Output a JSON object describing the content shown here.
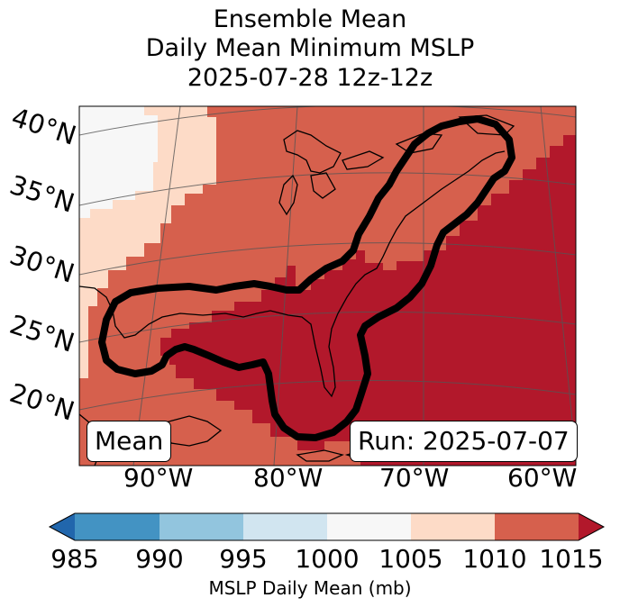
{
  "title": {
    "line1": "Ensemble Mean",
    "line2": "Daily Mean Minimum MSLP",
    "line3": "2025-07-28 12z-12z"
  },
  "map": {
    "latitude_labels": [
      "40°N",
      "35°N",
      "30°N",
      "25°N",
      "20°N"
    ],
    "longitude_labels": [
      "90°W",
      "80°W",
      "70°W",
      "60°W"
    ],
    "mean_box": "Mean",
    "run_box": "Run: 2025-07-07",
    "contour_color": "#000000",
    "fill_colors": {
      "1000_1005": "#f7f7f7",
      "1005_1010": "#fddbc7",
      "1010_1015": "#d6604d",
      "above_1015": "#b2182b"
    }
  },
  "colorbar": {
    "ticks": [
      "985",
      "990",
      "995",
      "1000",
      "1005",
      "1010",
      "1015"
    ],
    "label": "MSLP Daily Mean (mb)",
    "colors": [
      "#2166ac",
      "#4393c3",
      "#92c5de",
      "#d1e5f0",
      "#f7f7f7",
      "#fddbc7",
      "#d6604d",
      "#b2182b"
    ]
  }
}
